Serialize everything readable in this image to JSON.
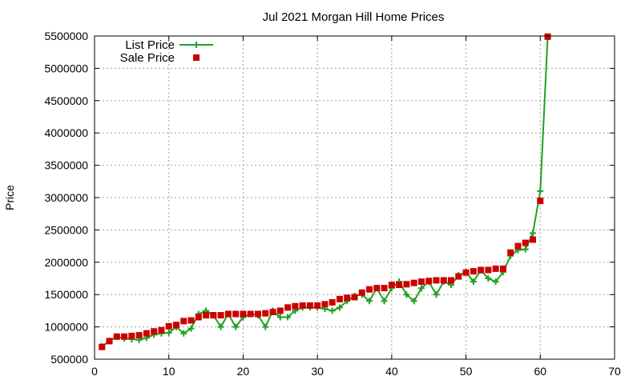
{
  "chart_data": {
    "type": "line",
    "title": "Jul 2021 Morgan Hill Home Prices",
    "xlabel": "",
    "ylabel": "Price",
    "xlim": [
      0,
      70
    ],
    "ylim": [
      500000,
      5500000
    ],
    "x_ticks": [
      0,
      10,
      20,
      30,
      40,
      50,
      60,
      70
    ],
    "y_ticks": [
      500000,
      1000000,
      1500000,
      2000000,
      2500000,
      3000000,
      3500000,
      4000000,
      4500000,
      5000000,
      5500000
    ],
    "grid": true,
    "legend_position": "top-left",
    "series": [
      {
        "name": "List Price",
        "style": "line-with-plus-markers",
        "color": "#22a022",
        "x": [
          1,
          2,
          3,
          4,
          5,
          6,
          7,
          8,
          9,
          10,
          11,
          12,
          13,
          14,
          15,
          16,
          17,
          18,
          19,
          20,
          21,
          22,
          23,
          24,
          25,
          26,
          27,
          28,
          29,
          30,
          31,
          32,
          33,
          34,
          35,
          36,
          37,
          38,
          39,
          40,
          41,
          42,
          43,
          44,
          45,
          46,
          47,
          48,
          49,
          50,
          51,
          52,
          53,
          54,
          55,
          56,
          57,
          58,
          59,
          60,
          61
        ],
        "values": [
          699000,
          780000,
          849000,
          820000,
          810000,
          799000,
          830000,
          880000,
          899000,
          910000,
          999000,
          899000,
          975000,
          1200000,
          1250000,
          1180000,
          999000,
          1200000,
          999000,
          1150000,
          1200000,
          1180000,
          999000,
          1250000,
          1149000,
          1150000,
          1250000,
          1300000,
          1300000,
          1300000,
          1280000,
          1250000,
          1300000,
          1400000,
          1480000,
          1499000,
          1400000,
          1600000,
          1399000,
          1600000,
          1700000,
          1499000,
          1399000,
          1599000,
          1699000,
          1499000,
          1700000,
          1649000,
          1799000,
          1850000,
          1699000,
          1875000,
          1750000,
          1699000,
          1849000,
          2100000,
          2188000,
          2200000,
          2450000,
          3100000,
          5488000
        ]
      },
      {
        "name": "Sale Price",
        "style": "square-markers",
        "color": "#cc0000",
        "x": [
          1,
          2,
          3,
          4,
          5,
          6,
          7,
          8,
          9,
          10,
          11,
          12,
          13,
          14,
          15,
          16,
          17,
          18,
          19,
          20,
          21,
          22,
          23,
          24,
          25,
          26,
          27,
          28,
          29,
          30,
          31,
          32,
          33,
          34,
          35,
          36,
          37,
          38,
          39,
          40,
          41,
          42,
          43,
          44,
          45,
          46,
          47,
          48,
          49,
          50,
          51,
          52,
          53,
          54,
          55,
          56,
          57,
          58,
          59,
          60,
          61
        ],
        "values": [
          690000,
          780000,
          850000,
          850000,
          860000,
          870000,
          900000,
          930000,
          950000,
          1010000,
          1030000,
          1090000,
          1100000,
          1150000,
          1180000,
          1180000,
          1180000,
          1200000,
          1200000,
          1200000,
          1200000,
          1200000,
          1210000,
          1230000,
          1250000,
          1300000,
          1320000,
          1330000,
          1330000,
          1330000,
          1350000,
          1380000,
          1430000,
          1450000,
          1460000,
          1530000,
          1580000,
          1600000,
          1600000,
          1650000,
          1650000,
          1660000,
          1680000,
          1700000,
          1710000,
          1720000,
          1720000,
          1720000,
          1780000,
          1840000,
          1860000,
          1880000,
          1880000,
          1900000,
          1900000,
          2150000,
          2250000,
          2300000,
          2350000,
          2950000,
          5490000
        ]
      }
    ]
  }
}
